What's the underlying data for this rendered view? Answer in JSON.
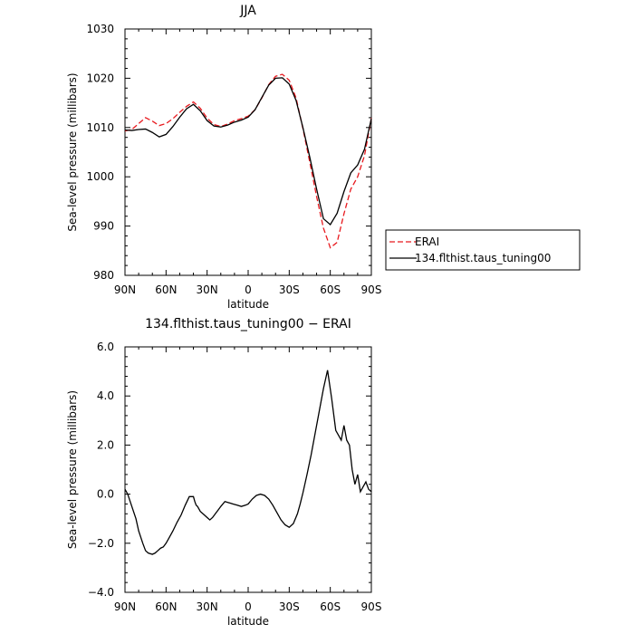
{
  "chart_data": [
    {
      "type": "line",
      "title": "JJA",
      "xlabel": "latitude",
      "ylabel": "Sea-level pressure (millibars)",
      "xlim": [
        90,
        -90
      ],
      "ylim": [
        980,
        1030
      ],
      "xticks": [
        {
          "value": 90,
          "label": "90N"
        },
        {
          "value": 60,
          "label": "60N"
        },
        {
          "value": 30,
          "label": "30N"
        },
        {
          "value": 0,
          "label": "0"
        },
        {
          "value": -30,
          "label": "30S"
        },
        {
          "value": -60,
          "label": "60S"
        },
        {
          "value": -90,
          "label": "90S"
        }
      ],
      "yticks": [
        {
          "value": 980,
          "label": "980"
        },
        {
          "value": 990,
          "label": "990"
        },
        {
          "value": 1000,
          "label": "1000"
        },
        {
          "value": 1010,
          "label": "1010"
        },
        {
          "value": 1020,
          "label": "1020"
        },
        {
          "value": 1030,
          "label": "1030"
        }
      ],
      "legend_position": "right",
      "series": [
        {
          "name": "ERAI",
          "color": "#e8191e",
          "dash": true,
          "x": [
            90,
            85,
            80,
            75,
            70,
            65,
            60,
            55,
            50,
            45,
            40,
            35,
            30,
            25,
            20,
            15,
            10,
            5,
            0,
            -5,
            -10,
            -15,
            -20,
            -25,
            -30,
            -35,
            -40,
            -45,
            -50,
            -55,
            -60,
            -65,
            -70,
            -75,
            -80,
            -85,
            -90
          ],
          "y": [
            1009.3,
            1009.6,
            1010.8,
            1012.0,
            1011.3,
            1010.4,
            1010.8,
            1011.8,
            1013.1,
            1014.3,
            1015.2,
            1013.9,
            1011.9,
            1010.6,
            1010.2,
            1010.7,
            1011.4,
            1011.8,
            1012.3,
            1013.6,
            1016.0,
            1018.7,
            1020.4,
            1020.8,
            1019.6,
            1016.0,
            1009.8,
            1003.0,
            996.0,
            989.6,
            985.6,
            986.7,
            992.5,
            997.5,
            1000.0,
            1004.3,
            1011.9
          ]
        },
        {
          "name": "134.flthist.taus_tuning00",
          "color": "#000000",
          "dash": false,
          "x": [
            90,
            85,
            80,
            75,
            70,
            65,
            60,
            55,
            50,
            45,
            40,
            35,
            30,
            25,
            20,
            15,
            10,
            5,
            0,
            -5,
            -10,
            -15,
            -20,
            -25,
            -30,
            -35,
            -40,
            -45,
            -50,
            -55,
            -60,
            -65,
            -70,
            -75,
            -80,
            -85,
            -90
          ],
          "y": [
            1009.5,
            1009.4,
            1009.6,
            1009.7,
            1009.0,
            1008.1,
            1008.6,
            1010.2,
            1012.1,
            1013.8,
            1014.7,
            1013.4,
            1011.4,
            1010.3,
            1010.1,
            1010.5,
            1011.1,
            1011.5,
            1012.1,
            1013.6,
            1016.1,
            1018.6,
            1020.0,
            1020.1,
            1018.8,
            1015.5,
            1010.0,
            1004.0,
            997.5,
            991.5,
            990.3,
            992.6,
            997.0,
            1000.8,
            1002.4,
            1005.6,
            1011.8
          ]
        }
      ]
    },
    {
      "type": "line",
      "title": "134.flthist.taus_tuning00 − ERAI",
      "xlabel": "latitude",
      "ylabel": "Sea-level pressure (millibars)",
      "xlim": [
        90,
        -90
      ],
      "ylim": [
        -4,
        6
      ],
      "xticks": [
        {
          "value": 90,
          "label": "90N"
        },
        {
          "value": 60,
          "label": "60N"
        },
        {
          "value": 30,
          "label": "30N"
        },
        {
          "value": 0,
          "label": "0"
        },
        {
          "value": -30,
          "label": "30S"
        },
        {
          "value": -60,
          "label": "60S"
        },
        {
          "value": -90,
          "label": "90S"
        }
      ],
      "yticks": [
        {
          "value": -4,
          "label": "−4.0"
        },
        {
          "value": -2,
          "label": "−2.0"
        },
        {
          "value": 0,
          "label": "0.0"
        },
        {
          "value": 2,
          "label": "2.0"
        },
        {
          "value": 4,
          "label": "4.0"
        },
        {
          "value": 6,
          "label": "6.0"
        }
      ],
      "series": [
        {
          "color": "#000000",
          "dash": false,
          "x": [
            90,
            88,
            85,
            82,
            80,
            77,
            75,
            73,
            70,
            68,
            66,
            64,
            62,
            60,
            58,
            55,
            52,
            49,
            46,
            43,
            40,
            39,
            38,
            37,
            36,
            35,
            32,
            30,
            28,
            26,
            24,
            22,
            20,
            17,
            14,
            11,
            8,
            5,
            2,
            0,
            -3,
            -6,
            -9,
            -12,
            -15,
            -18,
            -21,
            -24,
            -27,
            -30,
            -33,
            -36,
            -38,
            -40,
            -43,
            -46,
            -49,
            -52,
            -55,
            -58,
            -61,
            -64,
            -66,
            -68,
            -70,
            -72,
            -74,
            -76,
            -78,
            -80,
            -82,
            -84,
            -86,
            -88,
            -90
          ],
          "y": [
            0.2,
            0.0,
            -0.5,
            -1.0,
            -1.5,
            -2.0,
            -2.3,
            -2.4,
            -2.45,
            -2.4,
            -2.3,
            -2.2,
            -2.15,
            -2.0,
            -1.8,
            -1.5,
            -1.15,
            -0.85,
            -0.45,
            -0.1,
            -0.1,
            -0.3,
            -0.45,
            -0.5,
            -0.6,
            -0.7,
            -0.85,
            -0.95,
            -1.05,
            -0.95,
            -0.8,
            -0.65,
            -0.5,
            -0.3,
            -0.35,
            -0.4,
            -0.45,
            -0.5,
            -0.45,
            -0.4,
            -0.2,
            -0.05,
            0.0,
            -0.05,
            -0.2,
            -0.45,
            -0.75,
            -1.05,
            -1.25,
            -1.35,
            -1.2,
            -0.8,
            -0.4,
            0.05,
            0.8,
            1.6,
            2.5,
            3.4,
            4.3,
            5.05,
            3.9,
            2.6,
            2.4,
            2.2,
            2.8,
            2.2,
            2.0,
            1.0,
            0.4,
            0.8,
            0.1,
            0.3,
            0.5,
            0.2,
            0.1
          ]
        }
      ]
    }
  ]
}
